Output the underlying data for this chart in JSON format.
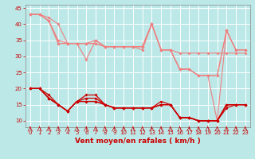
{
  "x": [
    0,
    1,
    2,
    3,
    4,
    5,
    6,
    7,
    8,
    9,
    10,
    11,
    12,
    13,
    14,
    15,
    16,
    17,
    18,
    19,
    20,
    21,
    22,
    23
  ],
  "rafales_line1": [
    43,
    43,
    42,
    40,
    34,
    34,
    34,
    34,
    33,
    33,
    33,
    33,
    33,
    40,
    32,
    32,
    31,
    31,
    31,
    31,
    31,
    31,
    31,
    31
  ],
  "rafales_line2": [
    43,
    43,
    41,
    35,
    34,
    34,
    29,
    35,
    33,
    33,
    33,
    33,
    33,
    40,
    32,
    32,
    26,
    26,
    24,
    24,
    24,
    38,
    32,
    32
  ],
  "rafales_line3": [
    43,
    43,
    41,
    34,
    34,
    34,
    34,
    35,
    33,
    33,
    33,
    33,
    33,
    40,
    32,
    32,
    26,
    26,
    24,
    24,
    24,
    38,
    32,
    32
  ],
  "rafales_line4": [
    43,
    43,
    41,
    34,
    34,
    34,
    34,
    34,
    33,
    33,
    33,
    33,
    32,
    40,
    32,
    32,
    26,
    26,
    24,
    24,
    10,
    38,
    32,
    32
  ],
  "moyen_line1": [
    20,
    20,
    18,
    15,
    13,
    16,
    18,
    18,
    15,
    14,
    14,
    14,
    14,
    14,
    16,
    15,
    11,
    11,
    10,
    10,
    10,
    15,
    15,
    15
  ],
  "moyen_line2": [
    20,
    20,
    17,
    15,
    13,
    16,
    17,
    17,
    15,
    14,
    14,
    14,
    14,
    14,
    15,
    15,
    11,
    11,
    10,
    10,
    10,
    15,
    15,
    15
  ],
  "moyen_line3": [
    20,
    20,
    17,
    15,
    13,
    16,
    16,
    16,
    15,
    14,
    14,
    14,
    14,
    14,
    15,
    15,
    11,
    11,
    10,
    10,
    10,
    15,
    15,
    15
  ],
  "moyen_line4": [
    20,
    20,
    17,
    15,
    13,
    16,
    16,
    16,
    15,
    14,
    14,
    14,
    14,
    14,
    15,
    15,
    11,
    11,
    10,
    10,
    10,
    14,
    15,
    15
  ],
  "xlim_min": -0.5,
  "xlim_max": 23.5,
  "ylim_min": 8,
  "ylim_max": 46,
  "yticks": [
    10,
    15,
    20,
    25,
    30,
    35,
    40,
    45
  ],
  "xticks": [
    0,
    1,
    2,
    3,
    4,
    5,
    6,
    7,
    8,
    9,
    10,
    11,
    12,
    13,
    14,
    15,
    16,
    17,
    18,
    19,
    20,
    21,
    22,
    23
  ],
  "xlabel": "Vent moyen/en rafales ( km/h )",
  "bg_color": "#bce8e8",
  "grid_color": "#ffffff",
  "rafale_color": "#f08080",
  "moyen_color": "#cc0000",
  "arrow_color": "#cc0000",
  "marker_size": 2.0,
  "ylabel_fontsize": 5.5,
  "xlabel_fontsize": 6.5,
  "tick_fontsize": 5
}
